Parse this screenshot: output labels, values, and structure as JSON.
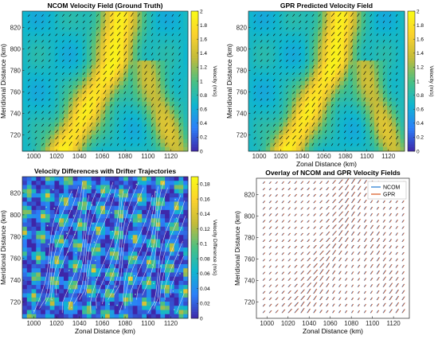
{
  "chart_data": [
    {
      "type": "heatmap",
      "title": "NCOM Velocity Field (Ground Truth)",
      "xlabel": "",
      "ylabel": "Meridional Distance (km)",
      "xlim": [
        990,
        1135
      ],
      "ylim": [
        705,
        835
      ],
      "xticks": [
        "1000",
        "1020",
        "1040",
        "1060",
        "1080",
        "1100",
        "1120"
      ],
      "yticks": [
        "720",
        "740",
        "760",
        "780",
        "800",
        "820"
      ],
      "colorbar": {
        "label": "Velocity (m/s)",
        "range": [
          0,
          2
        ],
        "ticks": [
          "0",
          "0.2",
          "0.4",
          "0.6",
          "0.8",
          "1",
          "1.2",
          "1.4",
          "1.6",
          "1.8",
          "2"
        ]
      },
      "colormap": [
        "#3e26a8",
        "#2c7ff9",
        "#0fb6cf",
        "#4ac083",
        "#c2bb3a",
        "#fbd12d",
        "#f9fb15"
      ],
      "overlay": "velocity-arrows"
    },
    {
      "type": "heatmap",
      "title": "GPR Predicted Velocity Field",
      "xlabel": "Zonal Distance (km)",
      "ylabel": "Meridional Distance (km)",
      "xlim": [
        990,
        1135
      ],
      "ylim": [
        705,
        835
      ],
      "xticks": [
        "1000",
        "1020",
        "1040",
        "1060",
        "1080",
        "1100",
        "1120"
      ],
      "yticks": [
        "720",
        "740",
        "760",
        "780",
        "800",
        "820"
      ],
      "colorbar": {
        "label": "Velocity (m/s)",
        "range": [
          0,
          2
        ],
        "ticks": [
          "0",
          "0.2",
          "0.4",
          "0.6",
          "0.8",
          "1",
          "1.2",
          "1.4",
          "1.6",
          "1.8",
          "2"
        ]
      },
      "colormap": [
        "#3e26a8",
        "#2c7ff9",
        "#0fb6cf",
        "#4ac083",
        "#c2bb3a",
        "#fbd12d",
        "#f9fb15"
      ],
      "overlay": "velocity-arrows"
    },
    {
      "type": "heatmap",
      "title": "Velocity Differences with Drifter Trajectories",
      "xlabel": "Zonal Distance (km)",
      "ylabel": "Meridional Distance (km)",
      "xlim": [
        990,
        1135
      ],
      "ylim": [
        705,
        835
      ],
      "xticks": [
        "1000",
        "1020",
        "1040",
        "1060",
        "1080",
        "1100",
        "1120"
      ],
      "yticks": [
        "720",
        "740",
        "760",
        "780",
        "800",
        "820"
      ],
      "colorbar": {
        "label": "Velocity Difference (m/s)",
        "range": [
          0,
          0.19
        ],
        "ticks": [
          "0",
          "0.02",
          "0.04",
          "0.06",
          "0.08",
          "0.1",
          "0.12",
          "0.14",
          "0.16",
          "0.18"
        ]
      },
      "colormap": [
        "#3e26a8",
        "#2c7ff9",
        "#0fb6cf",
        "#4ac083",
        "#c2bb3a",
        "#fbd12d",
        "#f9fb15"
      ],
      "overlay": "drifter-trajectories"
    },
    {
      "type": "quiver",
      "title": "Overlay of NCOM and GPR Velocity Fields",
      "xlabel": "Zonal Distance (km)",
      "ylabel": "Meridional Distance (km)",
      "xlim": [
        990,
        1135
      ],
      "ylim": [
        705,
        835
      ],
      "xticks": [
        "1000",
        "1020",
        "1040",
        "1060",
        "1080",
        "1100",
        "1120"
      ],
      "yticks": [
        "720",
        "740",
        "760",
        "780",
        "800",
        "820"
      ],
      "legend": {
        "position": "top-right",
        "items": [
          {
            "name": "NCOM",
            "color": "#1f77d0"
          },
          {
            "name": "GPR",
            "color": "#d9541a"
          }
        ]
      }
    }
  ]
}
